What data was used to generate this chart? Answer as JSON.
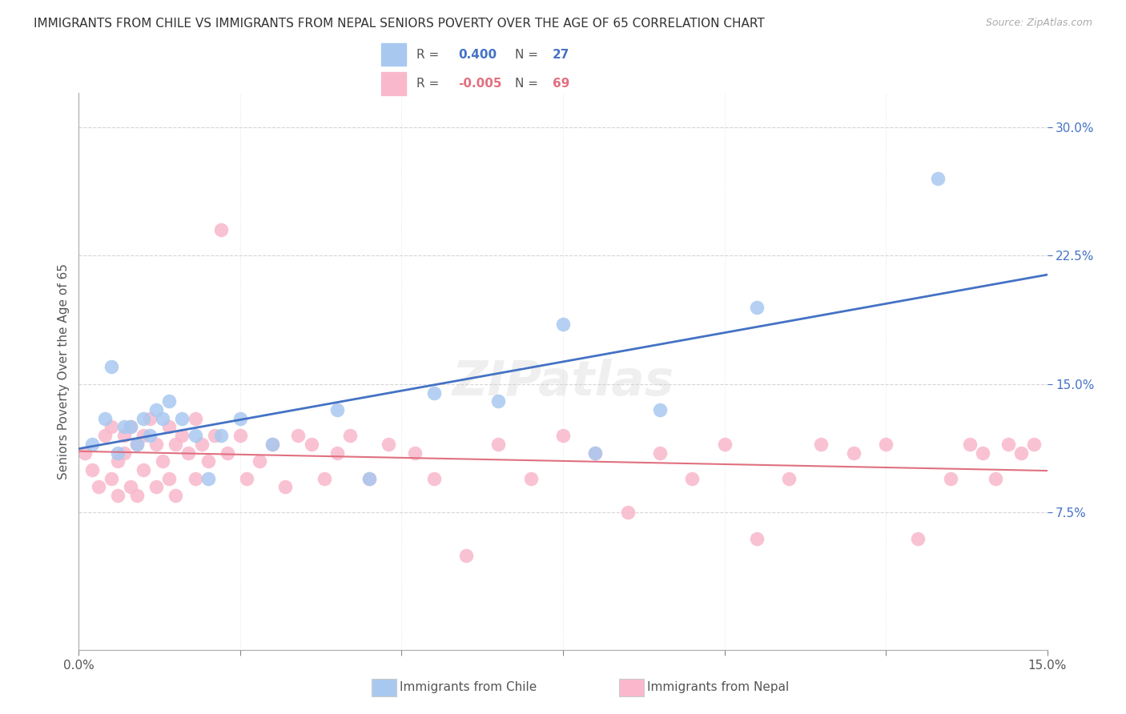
{
  "title": "IMMIGRANTS FROM CHILE VS IMMIGRANTS FROM NEPAL SENIORS POVERTY OVER THE AGE OF 65 CORRELATION CHART",
  "source": "Source: ZipAtlas.com",
  "ylabel": "Seniors Poverty Over the Age of 65",
  "yticks": [
    "7.5%",
    "15.0%",
    "22.5%",
    "30.0%"
  ],
  "ytick_values": [
    0.075,
    0.15,
    0.225,
    0.3
  ],
  "xlim": [
    0.0,
    0.15
  ],
  "ylim": [
    -0.005,
    0.32
  ],
  "chile_color": "#a8c8f0",
  "nepal_color": "#f9b8cb",
  "chile_line_color": "#4472c4",
  "nepal_line_color": "#e07080",
  "R_chile": 0.4,
  "N_chile": 27,
  "R_nepal": -0.005,
  "N_nepal": 69,
  "watermark": "ZIPatlas",
  "chile_scatter_x": [
    0.002,
    0.004,
    0.005,
    0.006,
    0.007,
    0.008,
    0.009,
    0.01,
    0.011,
    0.012,
    0.013,
    0.014,
    0.016,
    0.018,
    0.02,
    0.022,
    0.025,
    0.03,
    0.04,
    0.045,
    0.055,
    0.065,
    0.075,
    0.08,
    0.09,
    0.105,
    0.133
  ],
  "chile_scatter_y": [
    0.115,
    0.13,
    0.16,
    0.11,
    0.125,
    0.125,
    0.115,
    0.13,
    0.12,
    0.135,
    0.13,
    0.14,
    0.13,
    0.12,
    0.095,
    0.12,
    0.13,
    0.115,
    0.135,
    0.095,
    0.145,
    0.14,
    0.185,
    0.11,
    0.135,
    0.195,
    0.27
  ],
  "nepal_scatter_x": [
    0.001,
    0.002,
    0.003,
    0.004,
    0.005,
    0.005,
    0.006,
    0.006,
    0.007,
    0.007,
    0.008,
    0.008,
    0.009,
    0.009,
    0.01,
    0.01,
    0.011,
    0.012,
    0.012,
    0.013,
    0.014,
    0.014,
    0.015,
    0.015,
    0.016,
    0.017,
    0.018,
    0.018,
    0.019,
    0.02,
    0.021,
    0.022,
    0.023,
    0.025,
    0.026,
    0.028,
    0.03,
    0.032,
    0.034,
    0.036,
    0.038,
    0.04,
    0.042,
    0.045,
    0.048,
    0.052,
    0.055,
    0.06,
    0.065,
    0.07,
    0.075,
    0.08,
    0.085,
    0.09,
    0.095,
    0.1,
    0.105,
    0.11,
    0.115,
    0.12,
    0.125,
    0.13,
    0.135,
    0.138,
    0.14,
    0.142,
    0.144,
    0.146,
    0.148
  ],
  "nepal_scatter_y": [
    0.11,
    0.1,
    0.09,
    0.12,
    0.125,
    0.095,
    0.105,
    0.085,
    0.12,
    0.11,
    0.125,
    0.09,
    0.115,
    0.085,
    0.12,
    0.1,
    0.13,
    0.115,
    0.09,
    0.105,
    0.125,
    0.095,
    0.115,
    0.085,
    0.12,
    0.11,
    0.13,
    0.095,
    0.115,
    0.105,
    0.12,
    0.24,
    0.11,
    0.12,
    0.095,
    0.105,
    0.115,
    0.09,
    0.12,
    0.115,
    0.095,
    0.11,
    0.12,
    0.095,
    0.115,
    0.11,
    0.095,
    0.05,
    0.115,
    0.095,
    0.12,
    0.11,
    0.075,
    0.11,
    0.095,
    0.115,
    0.06,
    0.095,
    0.115,
    0.11,
    0.115,
    0.06,
    0.095,
    0.115,
    0.11,
    0.095,
    0.115,
    0.11,
    0.115
  ]
}
